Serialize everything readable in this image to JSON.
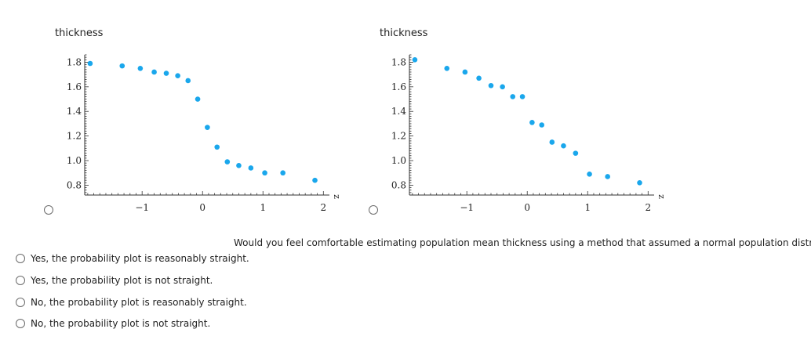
{
  "colors": {
    "marker": "#1aa7ec",
    "axis": "#333333"
  },
  "chart_data": [
    {
      "type": "scatter",
      "ylabel": "thickness",
      "xlabel": "z",
      "xlim": [
        -1.95,
        2.1
      ],
      "ylim": [
        0.72,
        1.86
      ],
      "xticks": [
        -1,
        0,
        1,
        2
      ],
      "yticks": [
        0.8,
        1.0,
        1.2,
        1.4,
        1.6,
        1.8
      ],
      "points": [
        {
          "x": -1.86,
          "y": 1.79
        },
        {
          "x": -1.33,
          "y": 1.77
        },
        {
          "x": -1.03,
          "y": 1.75
        },
        {
          "x": -0.8,
          "y": 1.72
        },
        {
          "x": -0.6,
          "y": 1.71
        },
        {
          "x": -0.41,
          "y": 1.69
        },
        {
          "x": -0.24,
          "y": 1.65
        },
        {
          "x": -0.08,
          "y": 1.5
        },
        {
          "x": 0.08,
          "y": 1.27
        },
        {
          "x": 0.24,
          "y": 1.11
        },
        {
          "x": 0.41,
          "y": 0.99
        },
        {
          "x": 0.6,
          "y": 0.96
        },
        {
          "x": 0.8,
          "y": 0.94
        },
        {
          "x": 1.03,
          "y": 0.9
        },
        {
          "x": 1.33,
          "y": 0.9
        },
        {
          "x": 1.86,
          "y": 0.84
        }
      ]
    },
    {
      "type": "scatter",
      "ylabel": "thickness",
      "xlabel": "z",
      "xlim": [
        -1.95,
        2.1
      ],
      "ylim": [
        0.72,
        1.86
      ],
      "xticks": [
        -1,
        0,
        1,
        2
      ],
      "yticks": [
        0.8,
        1.0,
        1.2,
        1.4,
        1.6,
        1.8
      ],
      "points": [
        {
          "x": -1.86,
          "y": 1.82
        },
        {
          "x": -1.33,
          "y": 1.75
        },
        {
          "x": -1.03,
          "y": 1.72
        },
        {
          "x": -0.8,
          "y": 1.67
        },
        {
          "x": -0.6,
          "y": 1.61
        },
        {
          "x": -0.41,
          "y": 1.6
        },
        {
          "x": -0.24,
          "y": 1.52
        },
        {
          "x": -0.08,
          "y": 1.52
        },
        {
          "x": 0.08,
          "y": 1.31
        },
        {
          "x": 0.24,
          "y": 1.29
        },
        {
          "x": 0.41,
          "y": 1.15
        },
        {
          "x": 0.6,
          "y": 1.12
        },
        {
          "x": 0.8,
          "y": 1.06
        },
        {
          "x": 1.03,
          "y": 0.89
        },
        {
          "x": 1.33,
          "y": 0.87
        },
        {
          "x": 1.86,
          "y": 0.82
        }
      ]
    }
  ],
  "question": "Would you feel comfortable estimating population mean thickness using a method that assumed a normal population distribution?",
  "options": [
    "Yes, the probability plot is reasonably straight.",
    "Yes, the probability plot is not straight.",
    "No, the probability plot is reasonably straight.",
    "No, the probability plot is not straight."
  ]
}
